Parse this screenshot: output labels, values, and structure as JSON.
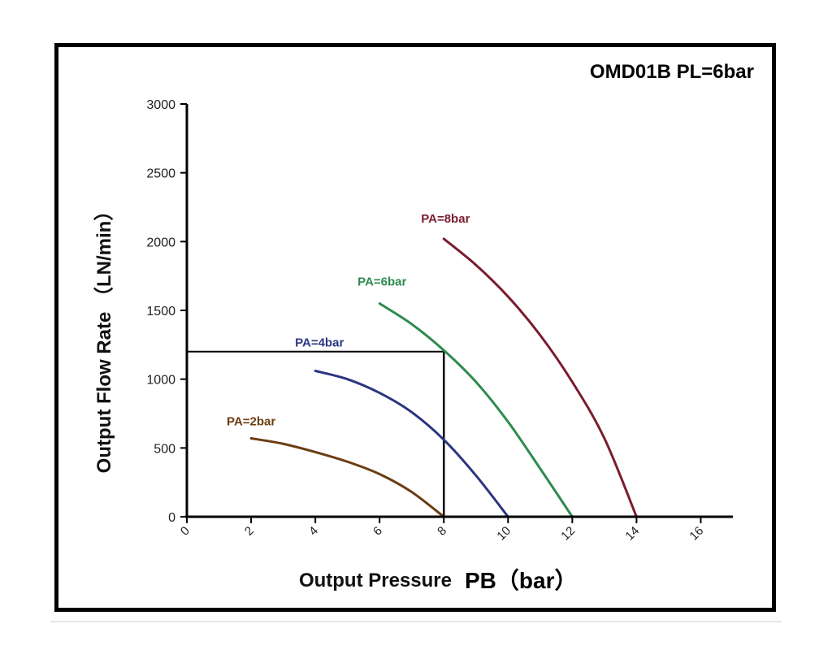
{
  "chart_data": {
    "type": "line",
    "title": "OMD01B  PL=6bar",
    "xlabel": "Output Pressure",
    "xlabel_symbol": "PB（bar）",
    "ylabel": "Output Flow Rate  （LN/min）",
    "xlim": [
      0,
      17
    ],
    "ylim": [
      0,
      3000
    ],
    "x_ticks": [
      0,
      2,
      4,
      6,
      8,
      10,
      12,
      14,
      16
    ],
    "x_tick_labels": [
      "0",
      "2",
      "4",
      "6",
      "8",
      "10",
      "12",
      "14",
      "16"
    ],
    "y_ticks": [
      0,
      500,
      1000,
      1500,
      2000,
      2500,
      3000
    ],
    "y_tick_labels": [
      "0",
      "500",
      "1000",
      "1500",
      "2000",
      "2500",
      "3000"
    ],
    "grid": false,
    "series": [
      {
        "name": "PA=2bar",
        "color": "#6b3d12",
        "x": [
          2,
          3,
          4,
          5,
          6,
          7,
          8
        ],
        "y": [
          570,
          530,
          470,
          400,
          310,
          180,
          0
        ]
      },
      {
        "name": "PA=4bar",
        "color": "#2c3580",
        "x": [
          4,
          5,
          6,
          7,
          8,
          9,
          10
        ],
        "y": [
          1060,
          1000,
          900,
          760,
          560,
          300,
          0
        ]
      },
      {
        "name": "PA=6bar",
        "color": "#2e8b4f",
        "x": [
          6,
          7,
          8,
          9,
          10,
          11,
          12
        ],
        "y": [
          1550,
          1400,
          1210,
          980,
          690,
          350,
          0
        ]
      },
      {
        "name": "PA=8bar",
        "color": "#7a1c2e",
        "x": [
          8,
          9,
          10,
          11,
          12,
          13,
          14
        ],
        "y": [
          2020,
          1830,
          1600,
          1320,
          980,
          570,
          0
        ]
      }
    ],
    "annotations": [
      {
        "type": "reference-lines",
        "x": 8,
        "y": 1200,
        "color": "#000000"
      }
    ]
  }
}
